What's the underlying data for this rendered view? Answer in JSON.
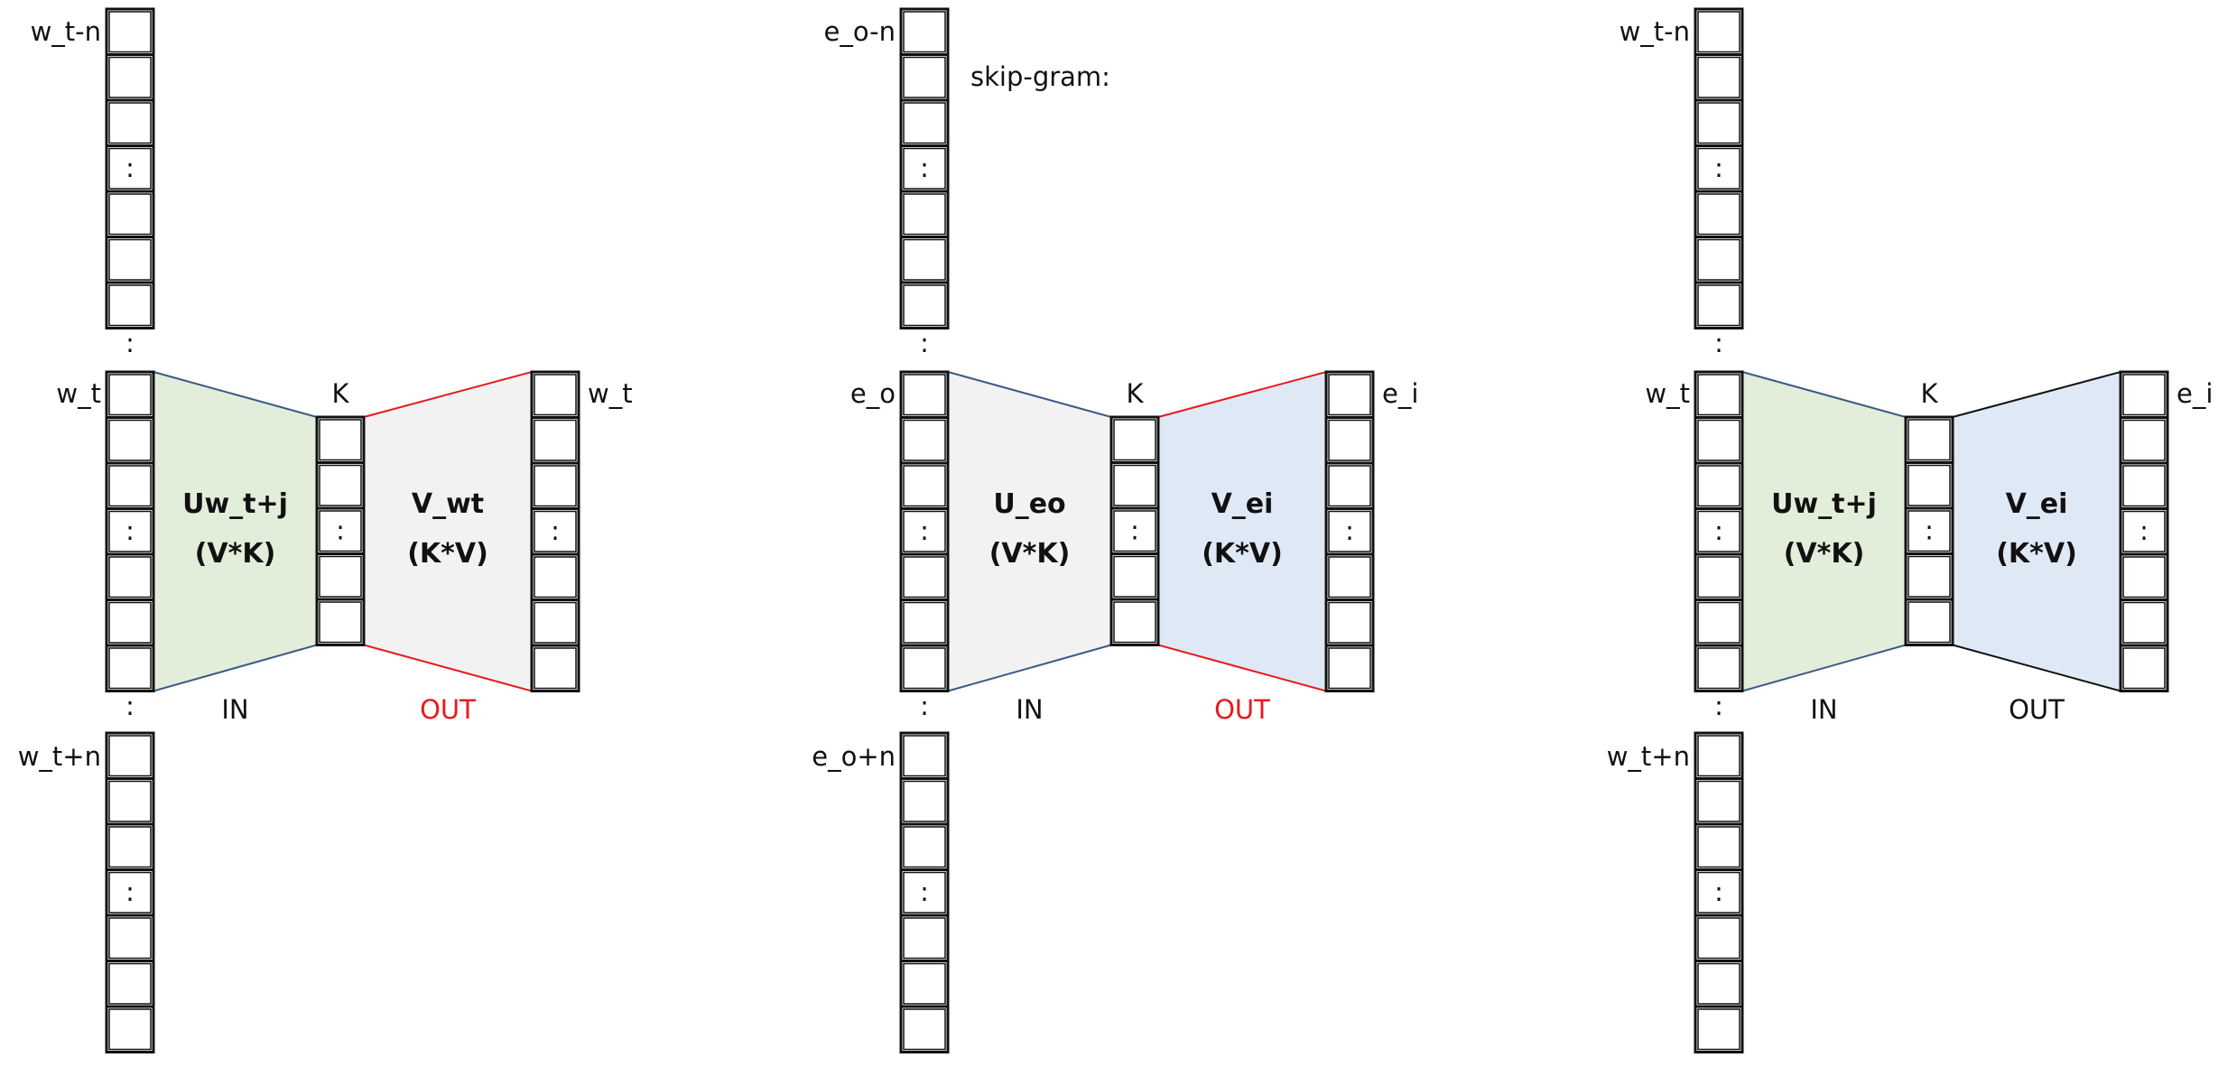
{
  "note": "skip-gram:",
  "colors": {
    "blue_edge": "#3b5a86",
    "red_edge": "#e8191e",
    "black_edge": "#111111",
    "green_fill": "#e2eed9",
    "gray_fill": "#f2f2f2",
    "blue_fill": "#dfe9f5",
    "out_red": "#e8191e",
    "text": "#111111"
  },
  "panels": [
    {
      "top_label": "w_t-n",
      "center_label": "w_t",
      "bottom_label": "w_t+n",
      "hidden_label": "K",
      "output_label": "w_t",
      "in_matrix": {
        "name": "Uw_t+j",
        "shape": "(V*K)",
        "fill": "green"
      },
      "out_matrix": {
        "name": "V_wt",
        "shape": "(K*V)",
        "fill": "gray"
      },
      "in_edge": "blue",
      "out_edge": "red",
      "in_caption": "IN",
      "out_caption": "OUT",
      "out_caption_color": "red"
    },
    {
      "top_label": "e_o-n",
      "center_label": "e_o",
      "bottom_label": "e_o+n",
      "hidden_label": "K",
      "output_label": "e_i",
      "in_matrix": {
        "name": "U_eo",
        "shape": "(V*K)",
        "fill": "gray"
      },
      "out_matrix": {
        "name": "V_ei",
        "shape": "(K*V)",
        "fill": "blue"
      },
      "in_edge": "blue",
      "out_edge": "red",
      "in_caption": "IN",
      "out_caption": "OUT",
      "out_caption_color": "red"
    },
    {
      "top_label": "w_t-n",
      "center_label": "w_t",
      "bottom_label": "w_t+n",
      "hidden_label": "K",
      "output_label": "e_i",
      "in_matrix": {
        "name": "Uw_t+j",
        "shape": "(V*K)",
        "fill": "green"
      },
      "out_matrix": {
        "name": "V_ei",
        "shape": "(K*V)",
        "fill": "blue"
      },
      "in_edge": "blue",
      "out_edge": "black",
      "in_caption": "IN",
      "out_caption": "OUT",
      "out_caption_color": "black"
    }
  ]
}
